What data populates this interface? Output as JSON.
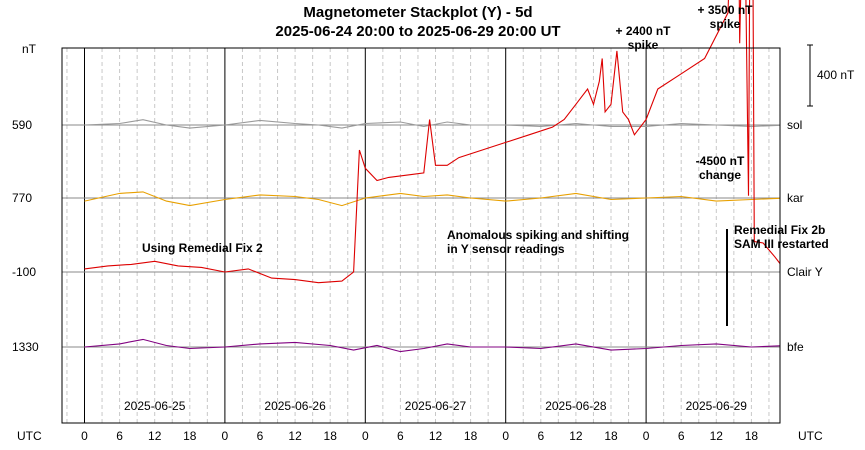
{
  "chart_data": {
    "type": "line",
    "title": "Magnetometer Stackplot (Y) - 5d",
    "subtitle": "2025-06-24 20:00 to 2025-06-29 20:00 UT",
    "y_unit": "nT",
    "scale_bar_label": "400 nT",
    "scale_bar_nT": 400,
    "x_axis_label_left": "UTC",
    "x_axis_label_right": "UTC",
    "x_range_hours": [
      0,
      120
    ],
    "hour_ticks": [
      "0",
      "6",
      "12",
      "18",
      "0",
      "6",
      "12",
      "18",
      "0",
      "6",
      "12",
      "18",
      "0",
      "6",
      "12",
      "18",
      "0",
      "6",
      "12",
      "18"
    ],
    "dates": [
      "2025-06-25",
      "2025-06-26",
      "2025-06-27",
      "2025-06-28",
      "2025-06-29"
    ],
    "grid": true,
    "series": [
      {
        "name": "sol",
        "baseline_label": "590",
        "color": "#9a9a9a",
        "points": [
          [
            0,
            0
          ],
          [
            6,
            10
          ],
          [
            10,
            35
          ],
          [
            14,
            0
          ],
          [
            18,
            -20
          ],
          [
            24,
            0
          ],
          [
            30,
            30
          ],
          [
            36,
            10
          ],
          [
            40,
            0
          ],
          [
            44,
            -20
          ],
          [
            48,
            10
          ],
          [
            54,
            20
          ],
          [
            58,
            -10
          ],
          [
            62,
            20
          ],
          [
            66,
            0
          ],
          [
            72,
            0
          ],
          [
            78,
            -10
          ],
          [
            84,
            10
          ],
          [
            90,
            -10
          ],
          [
            96,
            -10
          ],
          [
            102,
            10
          ],
          [
            108,
            0
          ],
          [
            114,
            -10
          ],
          [
            120,
            0
          ]
        ]
      },
      {
        "name": "kar",
        "baseline_label": "770",
        "color": "#e8a000",
        "points": [
          [
            0,
            -20
          ],
          [
            6,
            30
          ],
          [
            10,
            40
          ],
          [
            14,
            -20
          ],
          [
            18,
            -50
          ],
          [
            24,
            -10
          ],
          [
            30,
            20
          ],
          [
            36,
            10
          ],
          [
            40,
            -10
          ],
          [
            44,
            -50
          ],
          [
            48,
            0
          ],
          [
            54,
            30
          ],
          [
            58,
            10
          ],
          [
            62,
            20
          ],
          [
            66,
            0
          ],
          [
            72,
            -20
          ],
          [
            78,
            0
          ],
          [
            84,
            30
          ],
          [
            90,
            -10
          ],
          [
            96,
            0
          ],
          [
            102,
            10
          ],
          [
            108,
            -20
          ],
          [
            114,
            -10
          ],
          [
            120,
            0
          ]
        ]
      },
      {
        "name": "Clair Y",
        "baseline_label": "-100",
        "color": "#dd0000",
        "points": [
          [
            0,
            20
          ],
          [
            4,
            40
          ],
          [
            8,
            50
          ],
          [
            12,
            70
          ],
          [
            16,
            40
          ],
          [
            20,
            30
          ],
          [
            24,
            0
          ],
          [
            28,
            20
          ],
          [
            32,
            -40
          ],
          [
            36,
            -50
          ],
          [
            40,
            -70
          ],
          [
            44,
            -60
          ],
          [
            46,
            0
          ],
          [
            47,
            800
          ],
          [
            48,
            680
          ],
          [
            50,
            600
          ],
          [
            52,
            620
          ],
          [
            56,
            640
          ],
          [
            58,
            650
          ],
          [
            59,
            1000
          ],
          [
            60,
            700
          ],
          [
            62,
            700
          ],
          [
            64,
            750
          ],
          [
            68,
            800
          ],
          [
            72,
            850
          ],
          [
            76,
            900
          ],
          [
            80,
            950
          ],
          [
            82,
            1000
          ],
          [
            84,
            1100
          ],
          [
            85,
            1150
          ],
          [
            86,
            1200
          ],
          [
            87,
            1100
          ],
          [
            88,
            1250
          ],
          [
            88.5,
            1400
          ],
          [
            89,
            1050
          ],
          [
            90,
            1100
          ],
          [
            91,
            1450
          ],
          [
            92,
            1050
          ],
          [
            93,
            1000
          ],
          [
            94,
            900
          ],
          [
            96,
            1000
          ],
          [
            98,
            1200
          ],
          [
            102,
            1300
          ],
          [
            106,
            1400
          ],
          [
            110,
            1700
          ],
          [
            111.5,
            3500
          ],
          [
            112,
            1500
          ],
          [
            112.5,
            2400
          ],
          [
            113,
            2000
          ],
          [
            113.5,
            500
          ],
          [
            114,
            4000
          ],
          [
            114.5,
            200
          ],
          [
            116,
            190
          ],
          [
            118,
            100
          ],
          [
            120,
            0
          ]
        ]
      },
      {
        "name": "bfe",
        "baseline_label": "1330",
        "color": "#800080",
        "points": [
          [
            0,
            0
          ],
          [
            6,
            20
          ],
          [
            10,
            50
          ],
          [
            14,
            10
          ],
          [
            18,
            -10
          ],
          [
            24,
            0
          ],
          [
            30,
            20
          ],
          [
            36,
            30
          ],
          [
            42,
            10
          ],
          [
            46,
            -20
          ],
          [
            50,
            10
          ],
          [
            54,
            -30
          ],
          [
            58,
            -10
          ],
          [
            62,
            20
          ],
          [
            66,
            0
          ],
          [
            72,
            0
          ],
          [
            78,
            -10
          ],
          [
            84,
            20
          ],
          [
            90,
            -20
          ],
          [
            96,
            -10
          ],
          [
            102,
            10
          ],
          [
            108,
            20
          ],
          [
            114,
            0
          ],
          [
            120,
            10
          ]
        ]
      }
    ],
    "annotations": [
      {
        "text": "+ 2400 nT spike",
        "lines": [
          "+ 2400 nT",
          "spike"
        ]
      },
      {
        "text": "+ 3500 nT spike",
        "lines": [
          "+ 3500 nT",
          "spike"
        ]
      },
      {
        "text": "-4500 nT change",
        "lines": [
          "-4500 nT",
          "change"
        ]
      },
      {
        "text": "Using Remedial Fix 2",
        "lines": [
          "Using Remedial Fix 2"
        ]
      },
      {
        "text": "Anomalous spiking and shifting in Y sensor readings",
        "lines": [
          "Anomalous spiking and shifting",
          "in Y sensor readings"
        ]
      },
      {
        "text": "Remedial Fix 2b SAM III restarted",
        "lines": [
          "Remedial Fix 2b",
          "SAM III restarted"
        ]
      }
    ]
  }
}
